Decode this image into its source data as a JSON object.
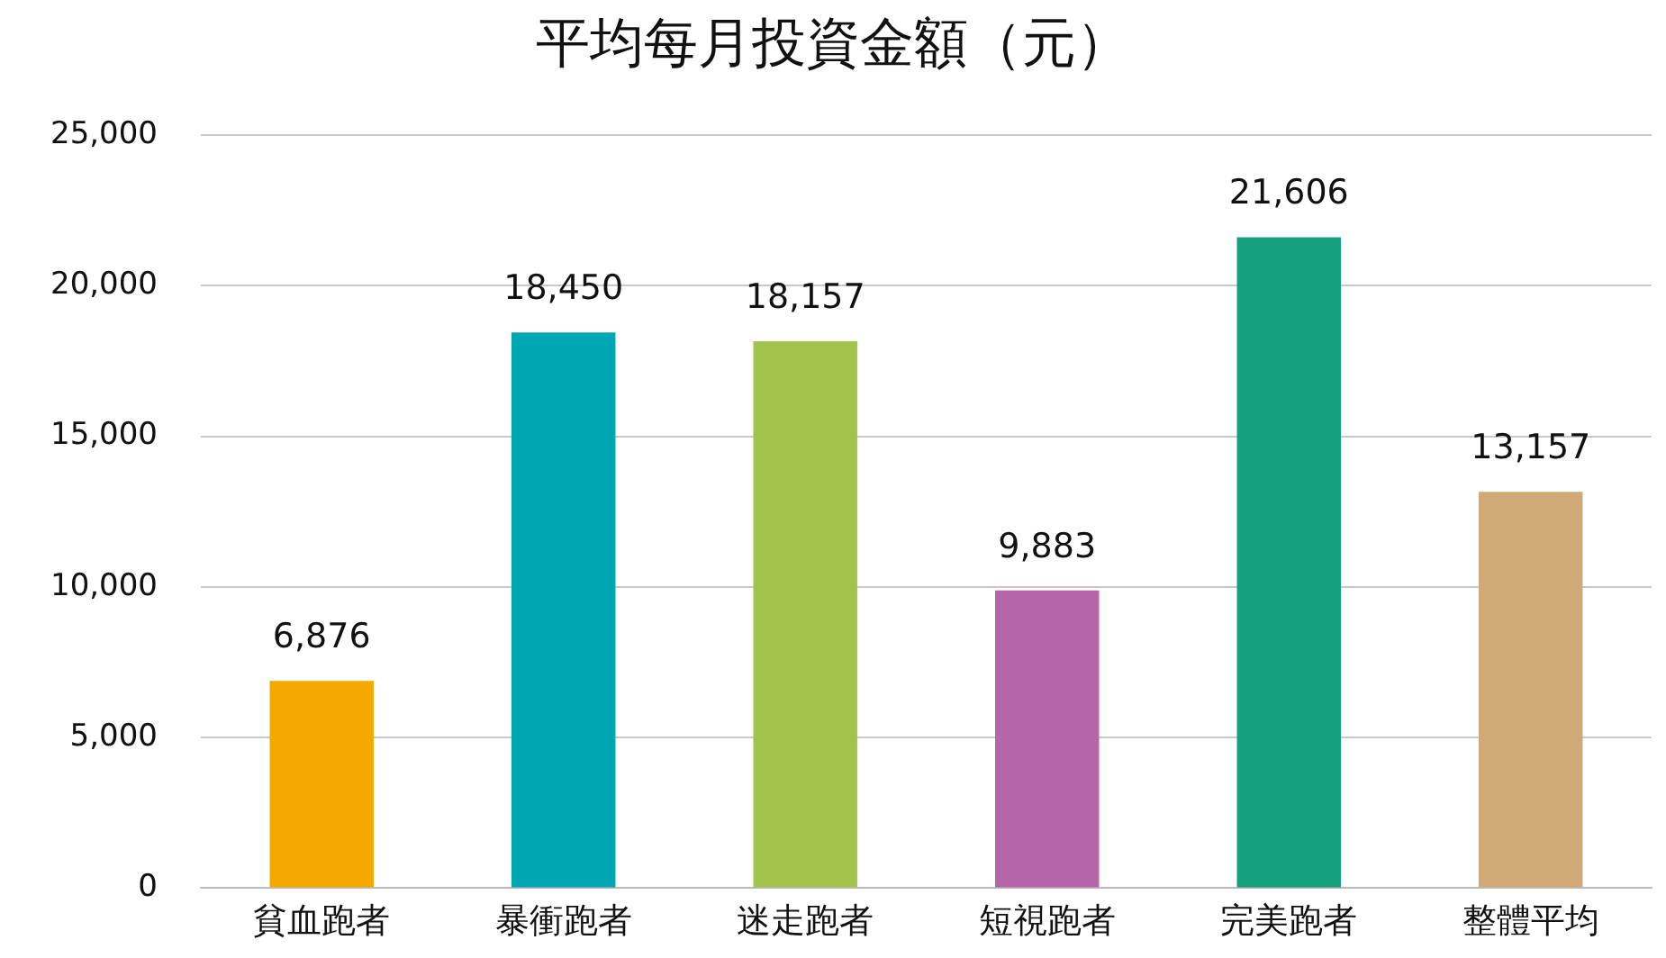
{
  "chart_data": {
    "type": "bar",
    "title": "平均每月投資金額（元）",
    "categories": [
      "貧血跑者",
      "暴衝跑者",
      "迷走跑者",
      "短視跑者",
      "完美跑者",
      "整體平均"
    ],
    "values": [
      6876,
      18450,
      18157,
      9883,
      21606,
      13157
    ],
    "colors": [
      "#f5a800",
      "#00a6b1",
      "#a2c44c",
      "#b565a8",
      "#13a07e",
      "#d0a977"
    ],
    "ylim": [
      0,
      25000
    ],
    "yticks": [
      {
        "value": 0,
        "label": "0"
      },
      {
        "value": 5000,
        "label": "5,000"
      },
      {
        "value": 10000,
        "label": "10,000"
      },
      {
        "value": 15000,
        "label": "15,000"
      },
      {
        "value": 20000,
        "label": "20,000"
      },
      {
        "value": 25000,
        "label": "25,000"
      }
    ],
    "value_labels": [
      "6,876",
      "18,450",
      "18,157",
      "9,883",
      "21,606",
      "13,157"
    ],
    "grid": "y"
  }
}
